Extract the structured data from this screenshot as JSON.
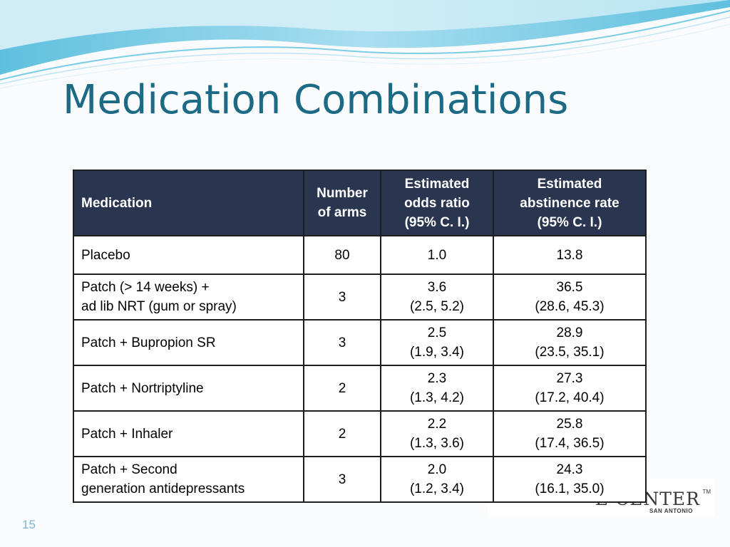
{
  "slide": {
    "title": "Medication Combinations",
    "page_number": "15"
  },
  "logo": {
    "main": "E CENTER",
    "tm": "TM",
    "sub": "SAN ANTONIO"
  },
  "colors": {
    "title": "#1c6a85",
    "header_bg": "#2a3550",
    "wave_light": "#d6eef6",
    "wave_mid": "#8fd0e6",
    "page_number": "#7fb5cf"
  },
  "table": {
    "headers": {
      "medication": "Medication",
      "arms": [
        "Number",
        "of arms"
      ],
      "odds": [
        "Estimated",
        "odds ratio",
        "(95% C. I.)"
      ],
      "abstinence": [
        "Estimated",
        "abstinence rate",
        "(95% C. I.)"
      ]
    },
    "rows": [
      {
        "medication": [
          "Placebo"
        ],
        "arms": "80",
        "odds": [
          "1.0"
        ],
        "abstinence": [
          "13.8"
        ]
      },
      {
        "medication": [
          "Patch (> 14 weeks) +",
          "ad lib NRT (gum or spray)"
        ],
        "arms": "3",
        "odds": [
          "3.6",
          "(2.5, 5.2)"
        ],
        "abstinence": [
          "36.5",
          "(28.6, 45.3)"
        ]
      },
      {
        "medication": [
          "Patch + Bupropion SR"
        ],
        "arms": "3",
        "odds": [
          "2.5",
          "(1.9, 3.4)"
        ],
        "abstinence": [
          "28.9",
          "(23.5, 35.1)"
        ]
      },
      {
        "medication": [
          "Patch + Nortriptyline"
        ],
        "arms": "2",
        "odds": [
          "2.3",
          "(1.3, 4.2)"
        ],
        "abstinence": [
          "27.3",
          "(17.2, 40.4)"
        ]
      },
      {
        "medication": [
          "Patch + Inhaler"
        ],
        "arms": "2",
        "odds": [
          "2.2",
          "(1.3, 3.6)"
        ],
        "abstinence": [
          "25.8",
          "(17.4, 36.5)"
        ]
      },
      {
        "medication": [
          "Patch + Second",
          "generation antidepressants"
        ],
        "arms": "3",
        "odds": [
          "2.0",
          "(1.2, 3.4)"
        ],
        "abstinence": [
          "24.3",
          "(16.1, 35.0)"
        ]
      }
    ]
  }
}
